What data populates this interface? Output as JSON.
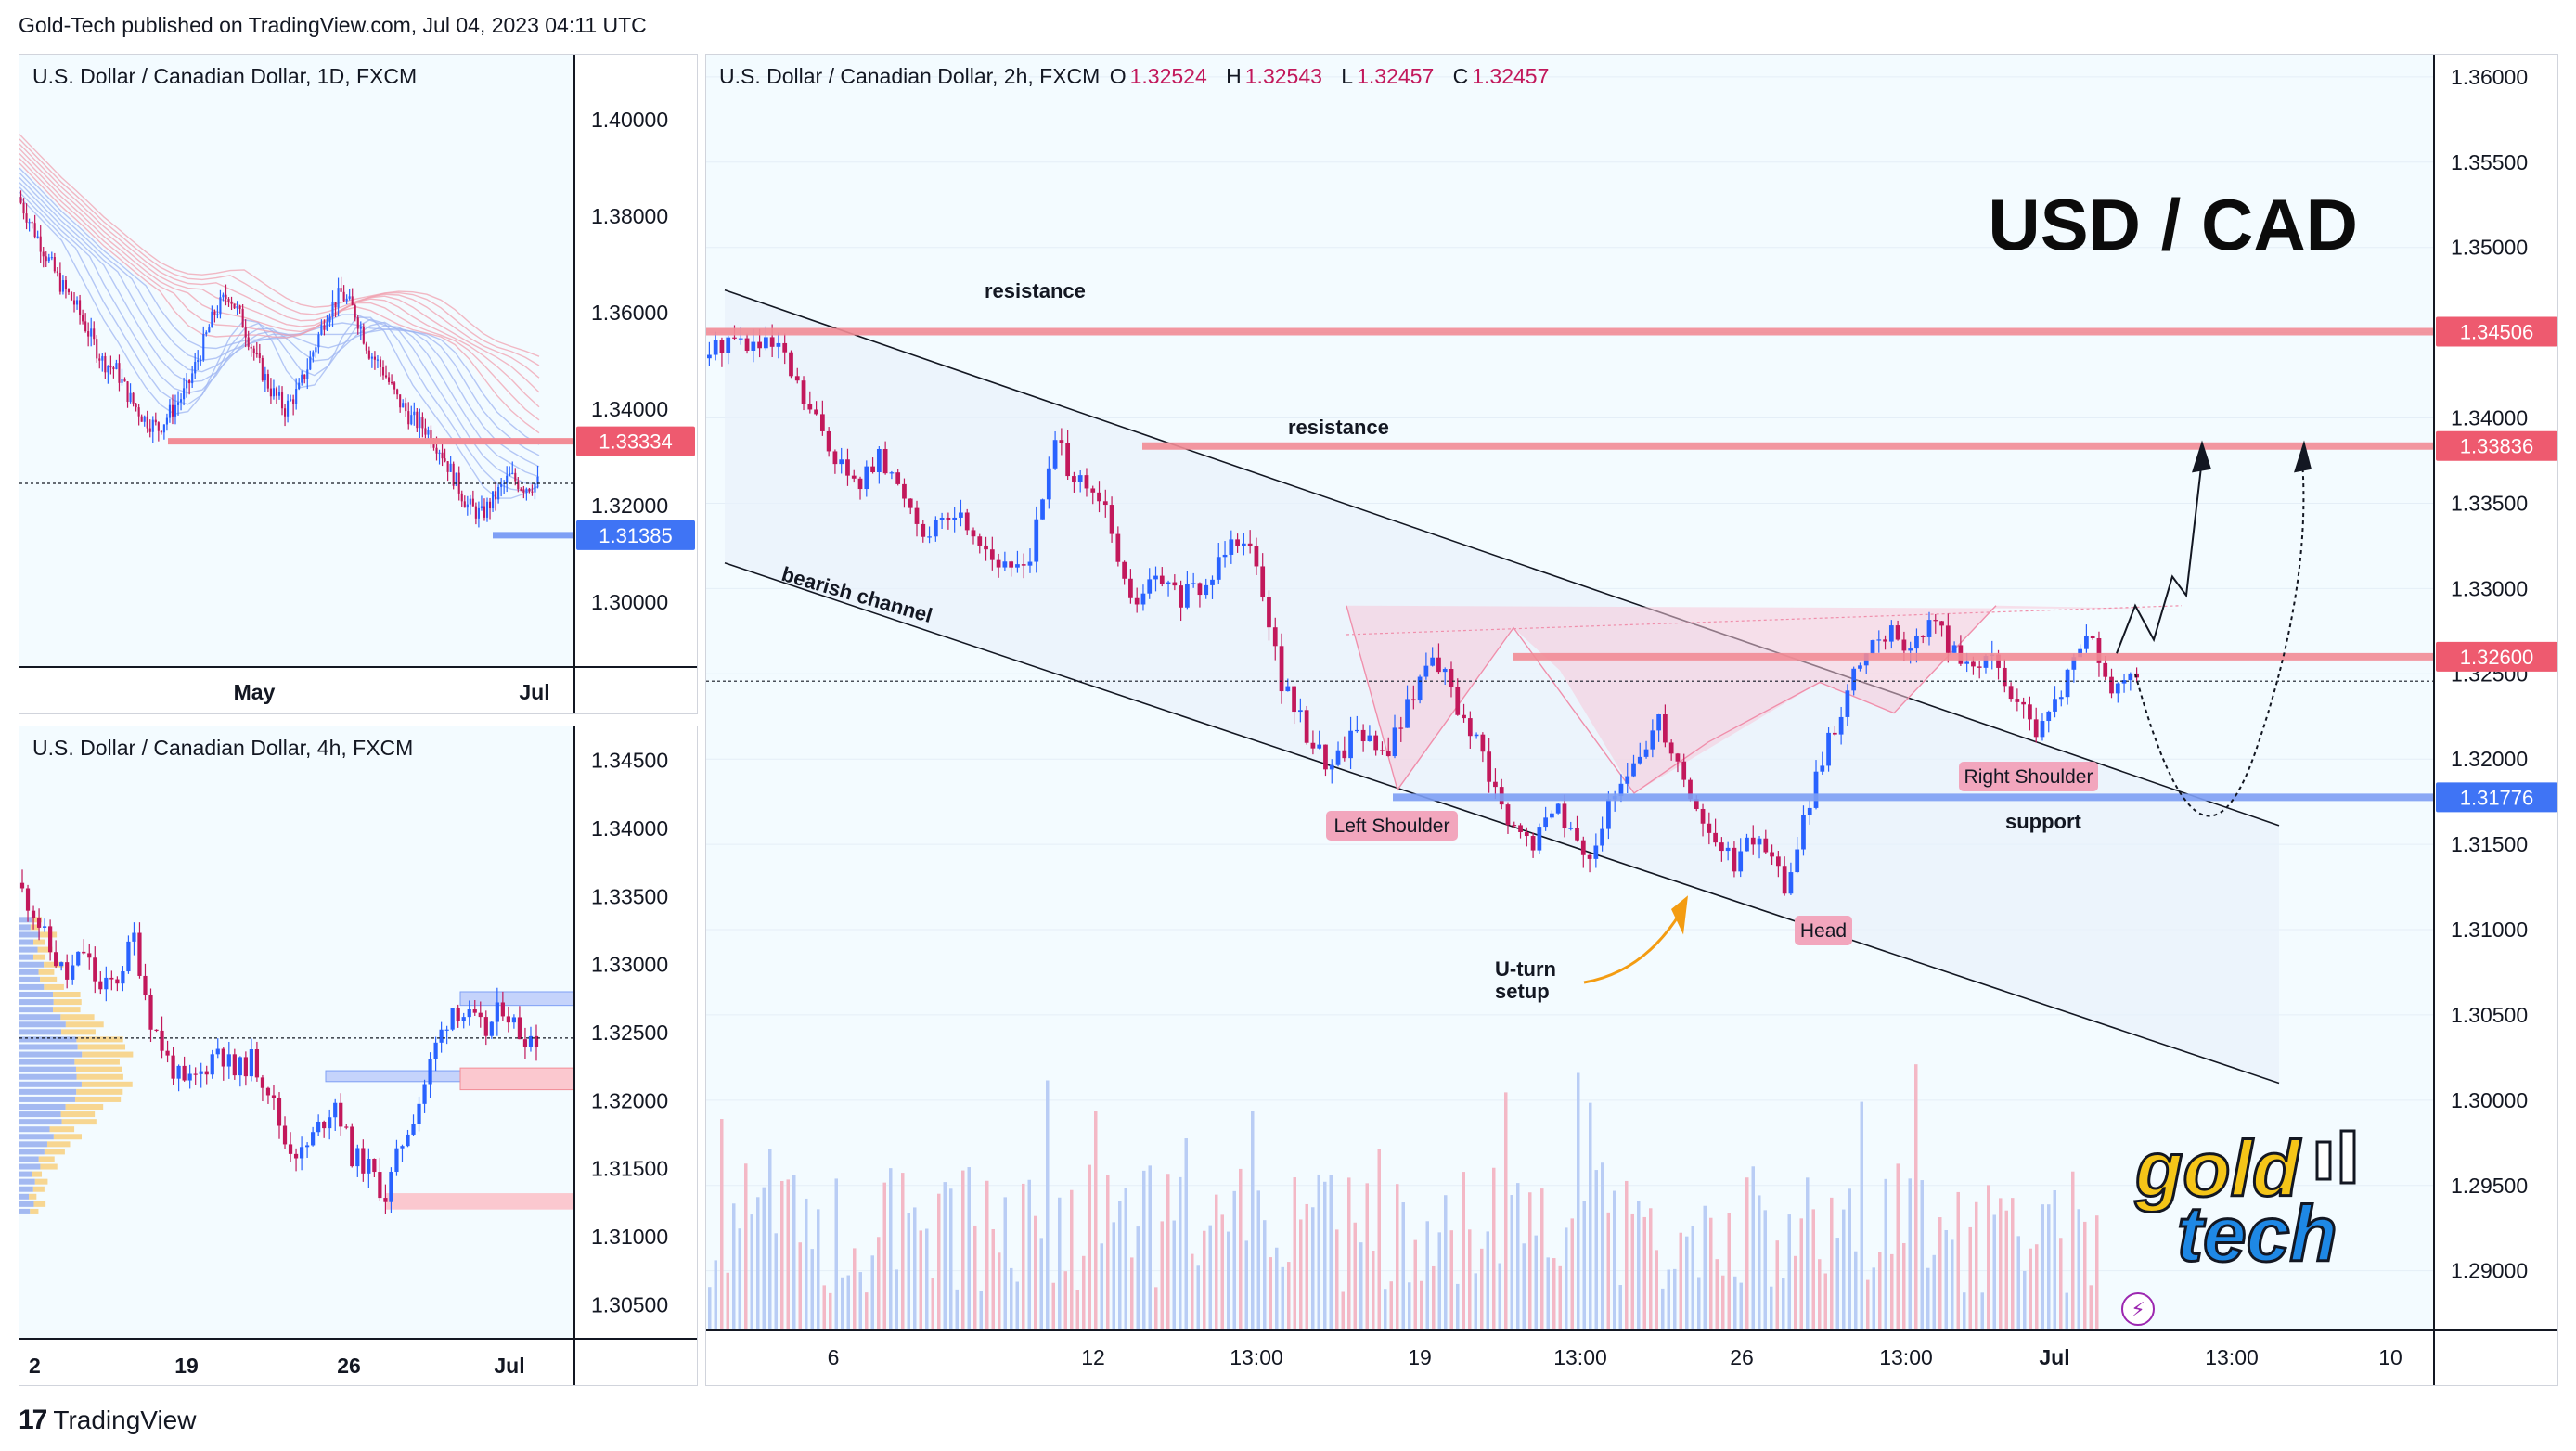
{
  "header": {
    "published": "Gold-Tech published on TradingView.com, Jul 04, 2023 04:11 UTC"
  },
  "footer": {
    "brand": "TradingView"
  },
  "colors": {
    "bull": "#2962ff",
    "bear": "#c2185b",
    "resistance": "#f28c96",
    "support": "#7e9ff5",
    "pattern_fill": "#f7c9d8",
    "channel_fill": "#e8f1fb"
  },
  "chart_data": [
    {
      "id": "daily",
      "type": "candlestick",
      "title": "U.S. Dollar / Canadian Dollar, 1D, FXCM",
      "y_ticks": [
        "1.40000",
        "1.38000",
        "1.36000",
        "1.34000",
        "1.32000",
        "1.30000"
      ],
      "ylim": [
        1.2865,
        1.4135
      ],
      "x_ticks": [
        "May",
        "Jul"
      ],
      "price_labels": [
        {
          "value": 1.33334,
          "text": "1.33334",
          "kind": "resistance"
        },
        {
          "value": 1.31385,
          "text": "1.31385",
          "kind": "support"
        }
      ],
      "current_price": 1.3246,
      "close_path": [
        1.384,
        1.378,
        1.372,
        1.366,
        1.362,
        1.356,
        1.35,
        1.348,
        1.342,
        1.338,
        1.336,
        1.34,
        1.344,
        1.352,
        1.36,
        1.364,
        1.358,
        1.35,
        1.344,
        1.34,
        1.344,
        1.352,
        1.36,
        1.364,
        1.36,
        1.352,
        1.348,
        1.342,
        1.338,
        1.336,
        1.332,
        1.326,
        1.32,
        1.318,
        1.322,
        1.326,
        1.324,
        1.3246
      ]
    },
    {
      "id": "h4",
      "type": "candlestick",
      "title": "U.S. Dollar / Canadian Dollar, 4h, FXCM",
      "y_ticks": [
        "1.34500",
        "1.34000",
        "1.33500",
        "1.33000",
        "1.32500",
        "1.32000",
        "1.31500",
        "1.31000",
        "1.30500"
      ],
      "ylim": [
        1.3025,
        1.3475
      ],
      "x_ticks": [
        "2",
        "19",
        "26",
        "Jul"
      ],
      "current_price": 1.3246,
      "close_path": [
        1.336,
        1.334,
        1.331,
        1.329,
        1.331,
        1.328,
        1.329,
        1.332,
        1.326,
        1.323,
        1.321,
        1.322,
        1.324,
        1.322,
        1.323,
        1.321,
        1.317,
        1.316,
        1.318,
        1.32,
        1.316,
        1.315,
        1.313,
        1.317,
        1.32,
        1.324,
        1.327,
        1.326,
        1.325,
        1.327,
        1.325,
        1.3246
      ]
    },
    {
      "id": "h2",
      "type": "candlestick",
      "title": "U.S. Dollar / Canadian Dollar, 2h, FXCM",
      "ohlc": {
        "o_label": "O",
        "o": "1.32524",
        "h_label": "H",
        "h": "1.32543",
        "l_label": "L",
        "l": "1.32457",
        "c_label": "C",
        "c": "1.32457"
      },
      "y_ticks": [
        "1.36000",
        "1.35500",
        "1.35000",
        "1.34500",
        "1.34000",
        "1.33500",
        "1.33000",
        "1.32500",
        "1.32000",
        "1.31500",
        "1.31000",
        "1.30500",
        "1.30000",
        "1.29500",
        "1.29000"
      ],
      "ylim": [
        1.2865,
        1.3613
      ],
      "x_ticks": [
        "6",
        "12",
        "13:00",
        "19",
        "13:00",
        "26",
        "13:00",
        "Jul",
        "13:00",
        "10"
      ],
      "price_labels": [
        {
          "value": 1.34506,
          "text": "1.34506",
          "kind": "resistance"
        },
        {
          "value": 1.33836,
          "text": "1.33836",
          "kind": "resistance"
        },
        {
          "value": 1.326,
          "text": "1.32600",
          "kind": "resistance"
        },
        {
          "value": 1.31776,
          "text": "1.31776",
          "kind": "support"
        }
      ],
      "current_price": 1.32457,
      "close_path": [
        1.3435,
        1.3448,
        1.3442,
        1.344,
        1.341,
        1.3385,
        1.336,
        1.3375,
        1.3355,
        1.333,
        1.3345,
        1.333,
        1.331,
        1.332,
        1.3385,
        1.336,
        1.3345,
        1.329,
        1.3305,
        1.3295,
        1.33,
        1.3335,
        1.332,
        1.3245,
        1.3215,
        1.3195,
        1.322,
        1.32,
        1.323,
        1.3265,
        1.323,
        1.32,
        1.316,
        1.315,
        1.3175,
        1.314,
        1.317,
        1.3195,
        1.3225,
        1.319,
        1.3155,
        1.314,
        1.3155,
        1.3125,
        1.3175,
        1.322,
        1.3255,
        1.3275,
        1.3265,
        1.3282,
        1.3255,
        1.326,
        1.3242,
        1.321,
        1.324,
        1.3275,
        1.3238,
        1.3246
      ],
      "annotations": {
        "resistance_top": "resistance",
        "resistance_mid": "resistance",
        "support": "support",
        "channel": "bearish channel",
        "left_shoulder": "Left Shoulder",
        "head": "Head",
        "right_shoulder": "Right Shoulder",
        "uturn_line1": "U-turn",
        "uturn_line2": "setup",
        "big_title": "USD / CAD"
      }
    }
  ],
  "logo": {
    "line1": "gold",
    "line2": "tech"
  }
}
